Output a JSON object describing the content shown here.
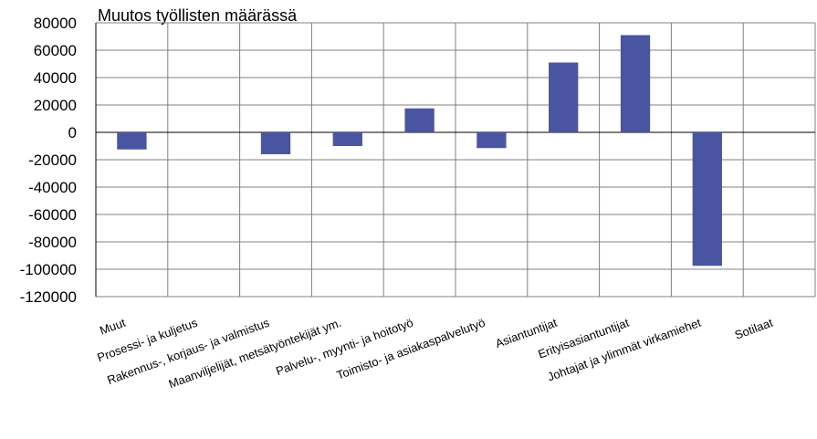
{
  "chart_data": {
    "type": "bar",
    "title": "Muutos työllisten määrässä",
    "xlabel": "",
    "ylabel": "",
    "ylim": [
      -120000,
      80000
    ],
    "yticks": [
      80000,
      60000,
      40000,
      20000,
      0,
      -20000,
      -40000,
      -60000,
      -80000,
      -100000,
      -120000
    ],
    "ytick_labels": [
      "80000",
      "60000",
      "40000",
      "20000",
      "0",
      "-20000",
      "-40000",
      "-60000",
      "-80000",
      "-100000",
      "-120000"
    ],
    "grid": true,
    "categories": [
      "Muut",
      "Prosessi- ja kuljetus",
      "Rakennus-, korjaus- ja valmistus",
      "Maanviljelijät, metsätyöntekijät ym.",
      "Palvelu-, myynti- ja hoitotyö",
      "Toimisto- ja asiakaspalvelutyö",
      "Asiantuntijat",
      "Erityisasiantuntijat",
      "Johtajat ja ylimmät virkamiehet",
      "Sotilaat"
    ],
    "values": [
      -12500,
      0,
      -16000,
      -10000,
      17500,
      -11500,
      51000,
      71000,
      -97500,
      0
    ],
    "colors": {
      "bar": "#4a55a2",
      "grid": "#808080",
      "axis": "#000000"
    }
  }
}
